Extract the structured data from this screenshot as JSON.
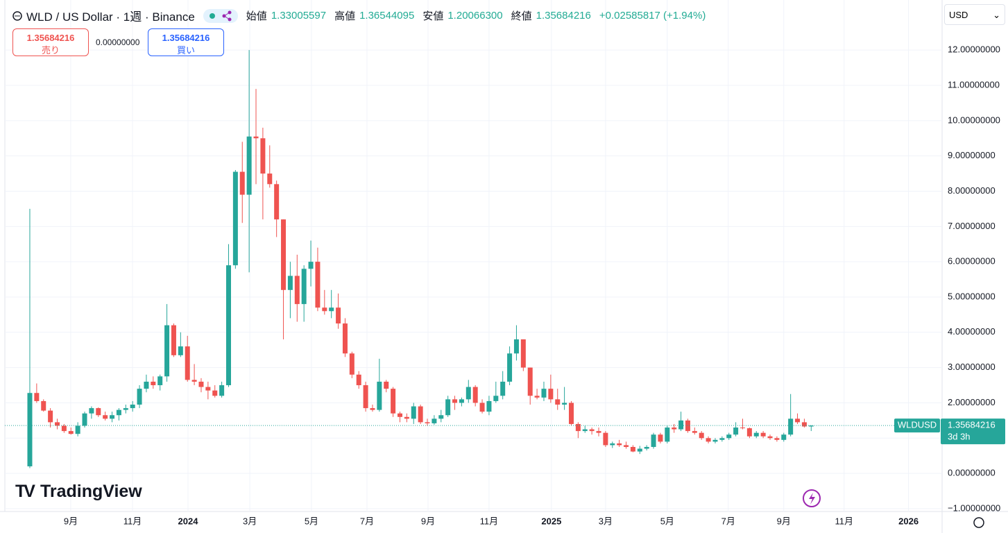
{
  "header": {
    "symbol": "WLD / US Dollar · 1週 · Binance",
    "open_label": "始値",
    "open": "1.33005597",
    "high_label": "高値",
    "high": "1.36544095",
    "low_label": "安値",
    "low": "1.20066300",
    "close_label": "終値",
    "close": "1.35684216",
    "change": "+0.02585817 (+1.94%)",
    "sell_price": "1.35684216",
    "sell_label": "売り",
    "spread": "0.00000000",
    "buy_price": "1.35684216",
    "buy_label": "買い",
    "currency": "USD",
    "ticker": "WLDUSD",
    "last_price": "1.35684216",
    "countdown": "3d 3h",
    "brand": "TradingView"
  },
  "chart_data": {
    "type": "candlestick",
    "up_color": "#26a69a",
    "down_color": "#ef5350",
    "open": [
      0.2,
      2.28,
      2.05,
      1.78,
      1.45,
      1.35,
      1.2,
      1.12,
      1.35,
      1.7,
      1.85,
      1.65,
      1.55,
      1.65,
      1.8,
      1.85,
      1.95,
      2.4,
      2.6,
      2.5,
      2.75,
      4.2,
      3.35,
      3.6,
      2.65,
      2.6,
      2.45,
      2.35,
      2.2,
      2.5,
      5.9,
      8.55,
      7.9,
      9.55,
      9.5,
      8.5,
      8.2,
      7.2,
      5.2,
      5.6,
      4.8,
      5.8,
      6.0,
      4.7,
      4.6,
      4.7,
      4.25,
      3.4,
      2.8,
      2.5,
      1.85,
      1.8,
      2.6,
      2.4,
      1.7,
      1.6,
      1.55,
      1.9,
      1.45,
      1.42,
      1.55,
      1.65,
      2.1,
      2.0,
      2.1,
      2.45,
      2.0,
      1.75,
      2.05,
      2.2,
      2.6,
      3.4,
      3.8,
      3.0,
      2.2,
      2.15,
      2.4,
      2.1,
      1.95,
      2.0,
      1.4,
      1.2,
      1.25,
      1.2,
      1.15,
      0.8,
      0.85,
      0.8,
      0.75,
      0.62,
      0.7,
      0.75,
      1.1,
      0.9,
      1.3,
      1.25,
      1.5,
      1.2,
      1.15,
      1.0,
      0.9,
      0.95,
      1.0,
      1.1,
      1.3,
      1.28,
      1.05,
      1.15,
      1.05,
      1.0,
      0.95,
      1.1,
      1.55,
      1.45,
      1.33
    ],
    "high": [
      7.5,
      2.55,
      2.1,
      1.85,
      1.55,
      1.4,
      1.3,
      1.45,
      1.75,
      1.9,
      1.87,
      1.75,
      1.75,
      1.85,
      1.95,
      2.05,
      2.5,
      2.8,
      2.75,
      2.8,
      4.8,
      4.25,
      4.0,
      3.9,
      3.1,
      2.7,
      2.6,
      2.5,
      2.6,
      6.5,
      8.6,
      9.4,
      12.0,
      10.9,
      9.8,
      9.3,
      8.3,
      7.2,
      6.0,
      6.2,
      5.9,
      6.6,
      6.4,
      5.2,
      5.2,
      5.1,
      4.4,
      3.45,
      2.9,
      2.6,
      1.95,
      3.25,
      2.65,
      2.45,
      1.75,
      1.7,
      2.0,
      1.95,
      1.55,
      1.65,
      1.8,
      2.2,
      2.2,
      2.15,
      2.65,
      2.5,
      2.1,
      2.2,
      2.6,
      2.9,
      3.6,
      4.2,
      3.8,
      3.0,
      2.4,
      2.6,
      2.8,
      2.4,
      2.45,
      2.05,
      1.45,
      1.35,
      1.3,
      1.3,
      1.2,
      0.9,
      0.95,
      0.9,
      0.8,
      0.78,
      0.8,
      1.15,
      1.15,
      1.35,
      1.4,
      1.75,
      1.55,
      1.3,
      1.2,
      1.05,
      1.0,
      1.05,
      1.15,
      1.45,
      1.55,
      1.3,
      1.2,
      1.2,
      1.1,
      1.05,
      1.15,
      2.25,
      1.7,
      1.55,
      1.365
    ],
    "low": [
      0.15,
      2.0,
      1.75,
      1.3,
      1.25,
      1.15,
      1.1,
      1.05,
      1.3,
      1.55,
      1.6,
      1.5,
      1.45,
      1.5,
      1.7,
      1.75,
      1.85,
      2.3,
      2.4,
      2.35,
      2.6,
      3.3,
      3.3,
      2.6,
      2.5,
      2.3,
      2.1,
      2.15,
      2.15,
      2.45,
      5.8,
      7.1,
      5.7,
      8.2,
      7.2,
      8.1,
      6.7,
      3.8,
      4.4,
      4.3,
      4.3,
      5.3,
      4.6,
      4.5,
      4.4,
      4.1,
      3.3,
      2.7,
      2.4,
      1.75,
      1.75,
      1.75,
      2.3,
      1.6,
      1.45,
      1.45,
      1.4,
      1.4,
      1.35,
      1.38,
      1.45,
      1.6,
      1.8,
      1.9,
      2.0,
      1.9,
      1.7,
      1.65,
      2.0,
      2.1,
      2.5,
      3.2,
      2.9,
      1.95,
      2.1,
      2.05,
      2.0,
      1.8,
      1.8,
      1.35,
      1.0,
      1.15,
      1.1,
      1.05,
      0.75,
      0.72,
      0.75,
      0.7,
      0.6,
      0.55,
      0.65,
      0.7,
      0.85,
      0.85,
      1.15,
      1.2,
      1.15,
      1.1,
      0.95,
      0.85,
      0.85,
      0.9,
      0.95,
      1.05,
      1.25,
      1.0,
      1.0,
      1.0,
      0.95,
      0.9,
      0.9,
      1.05,
      1.4,
      1.3,
      1.200663
    ],
    "close": [
      2.28,
      2.05,
      1.78,
      1.45,
      1.35,
      1.2,
      1.12,
      1.35,
      1.7,
      1.85,
      1.65,
      1.55,
      1.65,
      1.8,
      1.85,
      1.95,
      2.4,
      2.6,
      2.5,
      2.75,
      4.2,
      3.35,
      3.6,
      2.65,
      2.6,
      2.45,
      2.35,
      2.2,
      2.5,
      5.9,
      8.55,
      7.9,
      9.55,
      9.5,
      8.5,
      8.2,
      7.2,
      5.2,
      5.6,
      4.8,
      5.8,
      6.0,
      4.7,
      4.6,
      4.7,
      4.25,
      3.4,
      2.8,
      2.5,
      1.85,
      1.8,
      2.6,
      2.4,
      1.7,
      1.6,
      1.55,
      1.9,
      1.45,
      1.42,
      1.55,
      1.65,
      2.1,
      2.0,
      2.1,
      2.45,
      2.0,
      1.75,
      2.05,
      2.2,
      2.6,
      3.4,
      3.8,
      3.0,
      2.2,
      2.15,
      2.4,
      2.1,
      1.95,
      2.0,
      1.4,
      1.2,
      1.25,
      1.2,
      1.15,
      0.8,
      0.85,
      0.8,
      0.75,
      0.62,
      0.7,
      0.75,
      1.1,
      0.9,
      1.3,
      1.25,
      1.5,
      1.2,
      1.15,
      1.0,
      0.9,
      0.95,
      1.0,
      1.1,
      1.3,
      1.28,
      1.05,
      1.15,
      1.05,
      1.0,
      0.95,
      1.1,
      1.55,
      1.45,
      1.33,
      1.35684216
    ],
    "ylim": [
      -1.08,
      13.42
    ],
    "yticks": [
      {
        "value": -1,
        "label": "−1.00000000"
      },
      {
        "value": 0,
        "label": "0.00000000"
      },
      {
        "value": 1,
        "label": "1.00000000"
      },
      {
        "value": 2,
        "label": "2.00000000"
      },
      {
        "value": 3,
        "label": "3.00000000"
      },
      {
        "value": 4,
        "label": "4.00000000"
      },
      {
        "value": 5,
        "label": "5.00000000"
      },
      {
        "value": 6,
        "label": "6.00000000"
      },
      {
        "value": 7,
        "label": "7.00000000"
      },
      {
        "value": 8,
        "label": "8.00000000"
      },
      {
        "value": 9,
        "label": "9.00000000"
      },
      {
        "value": 10,
        "label": "10.00000000"
      },
      {
        "value": 11,
        "label": "11.00000000"
      },
      {
        "value": 12,
        "label": "12.00000000"
      }
    ],
    "xlim": [
      -4.35,
      133.1
    ],
    "xticks": [
      {
        "value": 5.97,
        "label": "9月"
      },
      {
        "value": 14.98,
        "label": "11月"
      },
      {
        "value": 23.08,
        "label": "2024"
      },
      {
        "value": 32.1,
        "label": "3月"
      },
      {
        "value": 41.09,
        "label": "5月"
      },
      {
        "value": 49.19,
        "label": "7月"
      },
      {
        "value": 58.1,
        "label": "9月"
      },
      {
        "value": 67.0,
        "label": "11月"
      },
      {
        "value": 76.1,
        "label": "2025"
      },
      {
        "value": 84.0,
        "label": "3月"
      },
      {
        "value": 93.0,
        "label": "5月"
      },
      {
        "value": 101.9,
        "label": "7月"
      },
      {
        "value": 110.0,
        "label": "9月"
      },
      {
        "value": 118.8,
        "label": "11月"
      },
      {
        "value": 128.2,
        "label": "2026"
      }
    ],
    "grid": true
  }
}
